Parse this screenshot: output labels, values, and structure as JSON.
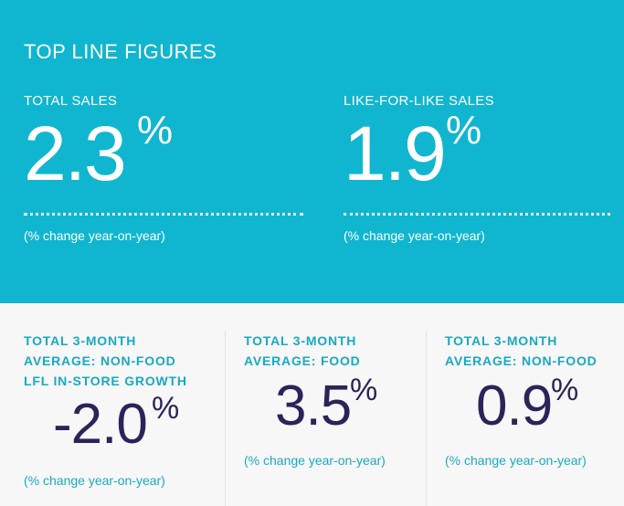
{
  "header": {
    "title": "TOP LINE FIGURES"
  },
  "metrics": [
    {
      "label": "TOTAL SALES",
      "value": "2.3",
      "unit": "%",
      "note": "(% change year-on-year)"
    },
    {
      "label": "LIKE-FOR-LIKE SALES",
      "value": "1.9",
      "unit": "%",
      "note": "(% change year-on-year)"
    }
  ],
  "averages": [
    {
      "label_lines": [
        "TOTAL 3-MONTH",
        "AVERAGE: NON-FOOD",
        "LFL IN-STORE GROWTH"
      ],
      "value": "-2.0",
      "unit": "%",
      "note": "(% change year-on-year)"
    },
    {
      "label_lines": [
        "TOTAL 3-MONTH",
        "AVERAGE: FOOD"
      ],
      "value": "3.5",
      "unit": "%",
      "note": "(% change year-on-year)"
    },
    {
      "label_lines": [
        "TOTAL 3-MONTH",
        "AVERAGE: NON-FOOD"
      ],
      "value": "0.9",
      "unit": "%",
      "note": "(% change year-on-year)"
    }
  ],
  "colors": {
    "banner": "#10b6cf",
    "accent": "#19a9bf",
    "value": "#2e2358",
    "background": "#f7f7f8"
  }
}
